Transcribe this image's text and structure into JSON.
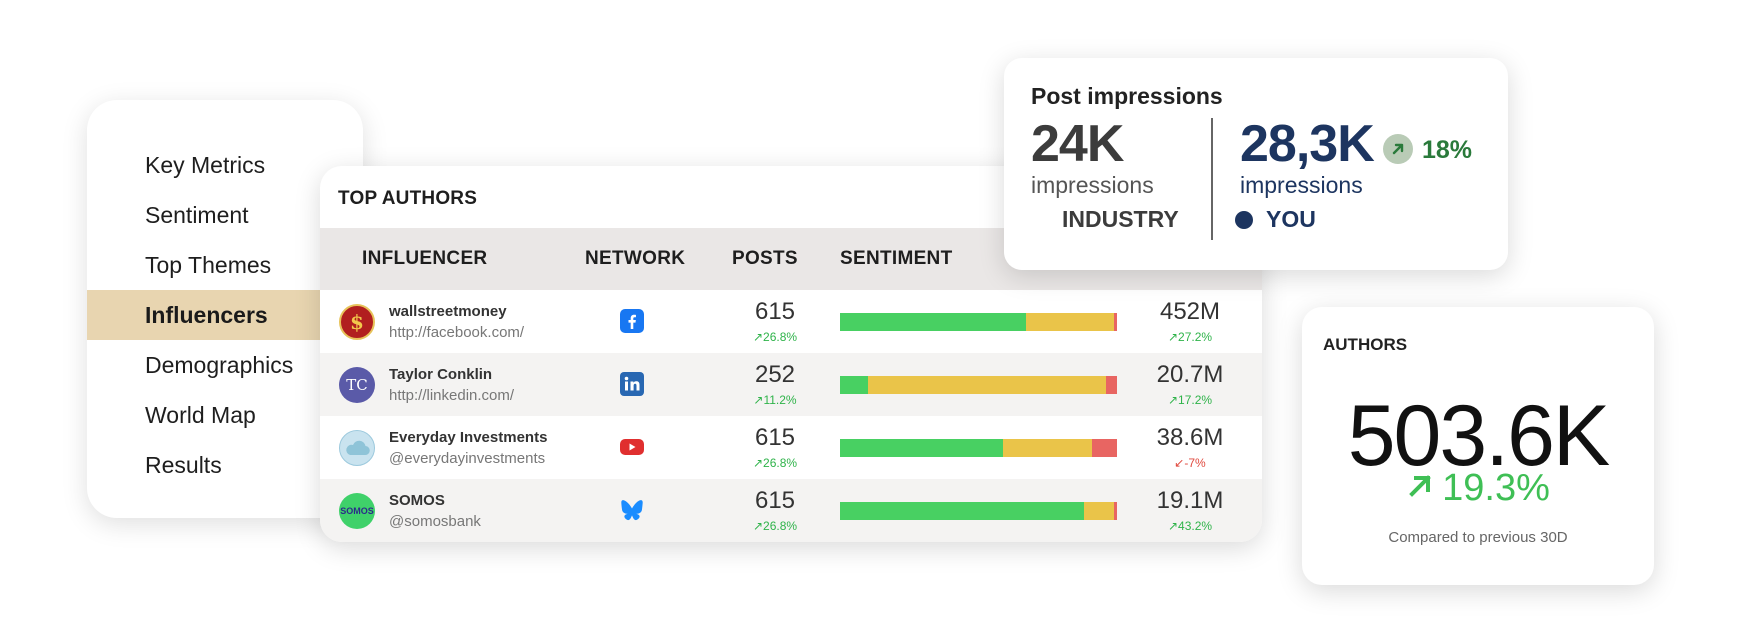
{
  "menu": {
    "items": [
      {
        "label": "Key Metrics"
      },
      {
        "label": "Sentiment"
      },
      {
        "label": "Top Themes"
      },
      {
        "label": "Influencers"
      },
      {
        "label": "Demographics"
      },
      {
        "label": "World Map"
      },
      {
        "label": "Results"
      }
    ],
    "active": "Influencers",
    "active_color": "#e8d5b0"
  },
  "top_authors": {
    "title": "TOP AUTHORS",
    "columns": {
      "influencer": "INFLUENCER",
      "network": "NETWORK",
      "posts": "POSTS",
      "sentiment": "SENTIMENT"
    },
    "sentiment_colors": {
      "positive": "#48d062",
      "neutral": "#eac449",
      "negative": "#e86562"
    },
    "rows": [
      {
        "name": "wallstreetmoney",
        "handle": "http://facebook.com/",
        "avatar": "dollar-sign-avatar",
        "network": "facebook-icon",
        "posts": "615",
        "posts_change": "26.8%",
        "sentiment": {
          "positive": 0.67,
          "neutral": 0.32,
          "negative": 0.01
        },
        "reach": "452M",
        "reach_change": "27.2%",
        "reach_trend": "up"
      },
      {
        "name": "Taylor Conklin",
        "handle": "http://linkedin.com/",
        "avatar": "TC",
        "network": "linkedin-icon",
        "posts": "252",
        "posts_change": "11.2%",
        "sentiment": {
          "positive": 0.1,
          "neutral": 0.86,
          "negative": 0.04
        },
        "reach": "20.7M",
        "reach_change": "17.2%",
        "reach_trend": "up"
      },
      {
        "name": "Everyday Investments",
        "handle": "@everydayinvestments",
        "avatar": "cloud-avatar",
        "network": "youtube-icon",
        "posts": "615",
        "posts_change": "26.8%",
        "sentiment": {
          "positive": 0.59,
          "neutral": 0.32,
          "negative": 0.09
        },
        "reach": "38.6M",
        "reach_change": "-7%",
        "reach_trend": "down"
      },
      {
        "name": "SOMOS",
        "handle": "@somosbank",
        "avatar": "SOMOS",
        "network": "bluesky-icon",
        "posts": "615",
        "posts_change": "26.8%",
        "sentiment": {
          "positive": 0.88,
          "neutral": 0.11,
          "negative": 0.01
        },
        "reach": "19.1M",
        "reach_change": "43.2%",
        "reach_trend": "up"
      }
    ]
  },
  "impressions": {
    "title": "Post impressions",
    "industry": {
      "value": "24K",
      "unit": "impressions",
      "label": "INDUSTRY"
    },
    "you": {
      "value": "28,3K",
      "unit": "impressions",
      "label": "YOU"
    },
    "change": "18%",
    "you_color": "#1d3560"
  },
  "authors_kpi": {
    "title": "AUTHORS",
    "value": "503.6K",
    "change": "19.3%",
    "comparison": "Compared to previous 30D"
  }
}
